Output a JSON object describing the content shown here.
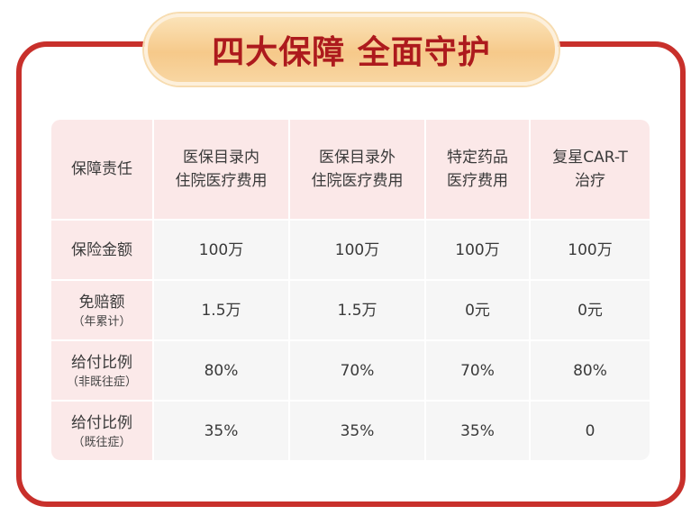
{
  "title": "四大保障 全面守护",
  "colors": {
    "frame": "#c8302b",
    "title": "#ad1a1d",
    "header_bg": "#fbe8e8",
    "cell_bg": "#f6f6f6"
  },
  "table": {
    "corner": "保障责任",
    "columns": [
      [
        "医保目录内",
        "住院医疗费用"
      ],
      [
        "医保目录外",
        "住院医疗费用"
      ],
      [
        "特定药品",
        "医疗费用"
      ],
      [
        "复星CAR-T",
        "治疗"
      ]
    ],
    "rows": [
      {
        "label": "保险金额",
        "sub": "",
        "values": [
          "100万",
          "100万",
          "100万",
          "100万"
        ]
      },
      {
        "label": "免赔额",
        "sub": "（年累计）",
        "values": [
          "1.5万",
          "1.5万",
          "0元",
          "0元"
        ]
      },
      {
        "label": "给付比例",
        "sub": "（非既往症）",
        "values": [
          "80%",
          "70%",
          "70%",
          "80%"
        ]
      },
      {
        "label": "给付比例",
        "sub": "（既往症）",
        "values": [
          "35%",
          "35%",
          "35%",
          "0"
        ]
      }
    ]
  }
}
